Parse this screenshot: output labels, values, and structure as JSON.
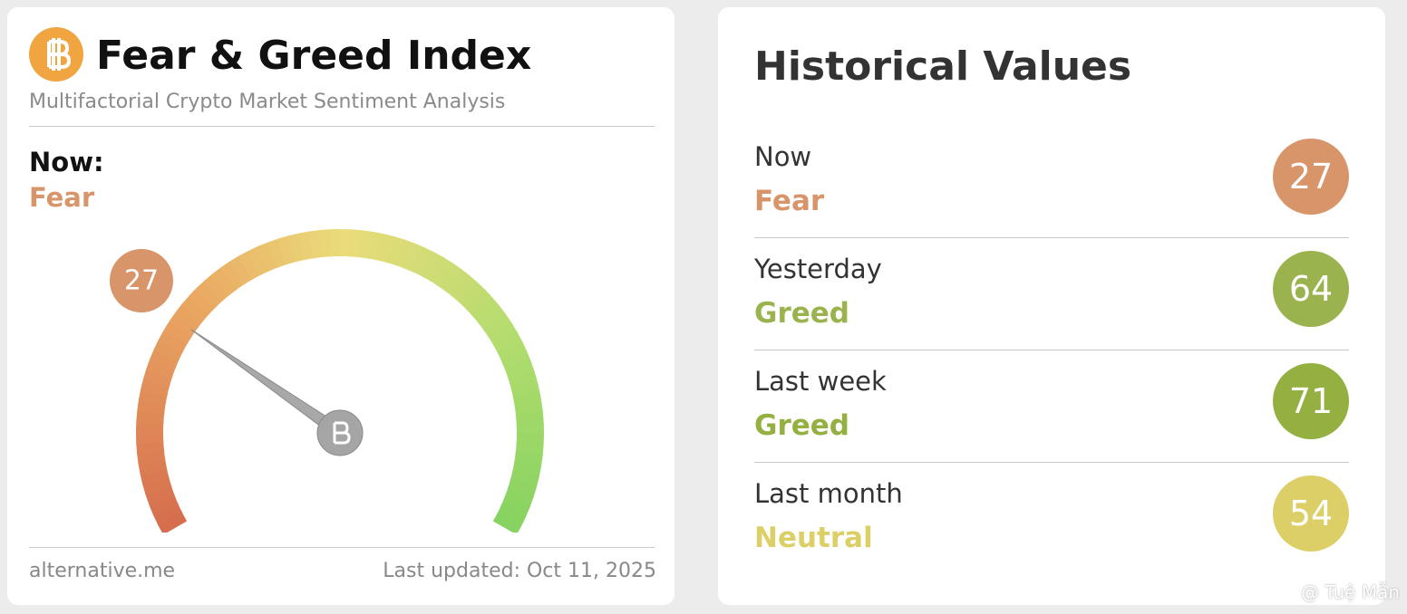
{
  "left_card": {
    "title": "Fear & Greed Index",
    "subtitle": "Multifactorial Crypto Market Sentiment Analysis",
    "now_label": "Now:",
    "now_class": "Fear",
    "now_color": "#d9956a",
    "value": 27,
    "footer_left": "alternative.me",
    "footer_right": "Last updated: Oct 11, 2025"
  },
  "right_card": {
    "title": "Historical Values",
    "rows": [
      {
        "label": "Now",
        "class": "Fear",
        "value": 27,
        "color": "#d9956a"
      },
      {
        "label": "Yesterday",
        "class": "Greed",
        "value": 64,
        "color": "#9bb34e"
      },
      {
        "label": "Last week",
        "class": "Greed",
        "value": 71,
        "color": "#94b041"
      },
      {
        "label": "Last month",
        "class": "Neutral",
        "value": 54,
        "color": "#dccf68"
      }
    ]
  },
  "watermark": "@ Tuệ Mẫn"
}
